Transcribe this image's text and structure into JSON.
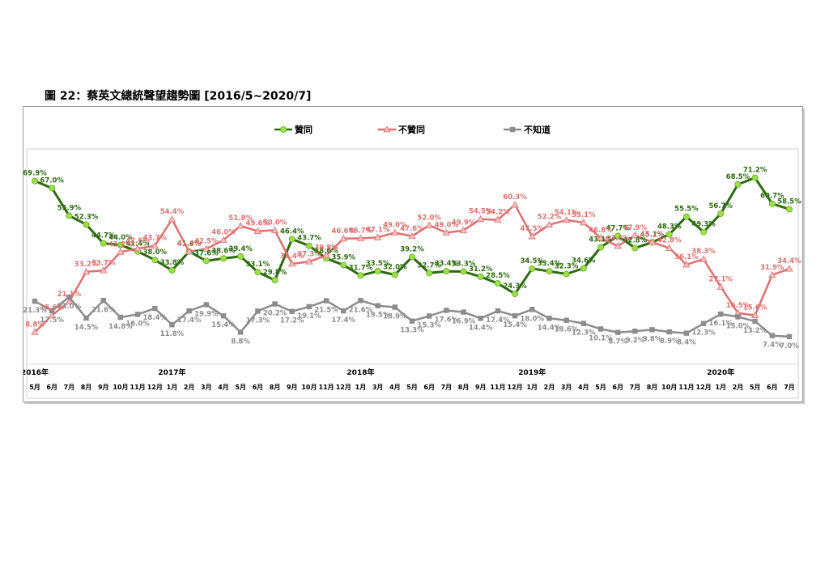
{
  "page": {
    "figure_title": "圖 22：蔡英文總統聲望趨勢圖  [2016/5~2020/7]"
  },
  "chart_data": {
    "type": "line",
    "grid": false,
    "legend_position": "top-center",
    "x_month_labels": [
      "5月",
      "6月",
      "7月",
      "8月",
      "9月",
      "10月",
      "11月",
      "12月",
      "1月",
      "2月",
      "3月",
      "4月",
      "5月",
      "6月",
      "8月",
      "9月",
      "10月",
      "11月",
      "12月",
      "1月",
      "3月",
      "4月",
      "5月",
      "6月",
      "7月",
      "8月",
      "9月",
      "11月",
      "12月",
      "1月",
      "2月",
      "3月",
      "4月",
      "5月",
      "6月",
      "7月",
      "8月",
      "10月",
      "11月",
      "12月",
      "1月",
      "2月",
      "5月",
      "6月",
      "7月"
    ],
    "year_labels": [
      {
        "label": "2016年",
        "index": 0
      },
      {
        "label": "2017年",
        "index": 8
      },
      {
        "label": "2018年",
        "index": 19
      },
      {
        "label": "2019年",
        "index": 29
      },
      {
        "label": "2020年",
        "index": 40
      }
    ],
    "series": [
      {
        "name": "贊同",
        "color": "#2d6b10",
        "marker": "circle",
        "marker_color": "#9be045",
        "values": [
          69.9,
          67.0,
          55.9,
          52.3,
          44.7,
          44.0,
          41.4,
          38.0,
          33.8,
          41.4,
          37.6,
          38.6,
          39.4,
          33.1,
          29.8,
          46.4,
          43.7,
          38.6,
          35.9,
          31.7,
          33.5,
          32.0,
          39.2,
          32.7,
          33.4,
          33.3,
          31.2,
          28.5,
          24.3,
          34.5,
          33.4,
          32.3,
          34.6,
          43.1,
          47.7,
          42.8,
          45.1,
          48.3,
          55.5,
          49.3,
          56.7,
          68.5,
          71.2,
          60.7,
          58.5
        ],
        "labels": [
          "69.9%",
          "67.0%",
          "55.9%",
          "52.3%",
          "44.7%",
          "44.0%",
          "41.4%",
          "38.0%",
          "33.8%",
          "41.4%",
          "37.6%",
          "38.6%",
          "39.4%",
          "33.1%",
          "29.8%",
          "46.4%",
          "43.7%",
          "38.6%",
          "35.9%",
          "31.7%",
          "33.5%",
          "32.0%",
          "39.2%",
          "32.7%",
          "33.4%",
          "33.3%",
          "31.2%",
          "28.5%",
          "24.3%",
          "34.5%",
          "33.4%",
          "32.3%",
          "34.6%",
          "43.1%",
          "47.7%",
          "42.8%",
          "45.1%",
          "48.3%",
          "55.5%",
          "49.3%",
          "56.7%",
          "68.5%",
          "71.2%",
          "60.7%",
          "58.5%"
        ]
      },
      {
        "name": "不贊同",
        "color": "#e07070",
        "marker": "triangle",
        "marker_color": "#f4c0c0",
        "values": [
          8.8,
          15.6,
          21.1,
          33.2,
          33.7,
          41.2,
          42.6,
          43.7,
          54.4,
          41.3,
          42.5,
          46.0,
          51.8,
          49.6,
          50.0,
          36.4,
          37.3,
          39.8,
          46.6,
          46.7,
          47.1,
          49.0,
          47.6,
          52.0,
          49.0,
          49.9,
          54.5,
          54.2,
          60.3,
          47.5,
          52.2,
          54.1,
          53.1,
          46.8,
          43.6,
          47.9,
          45.2,
          42.8,
          36.1,
          38.3,
          27.1,
          16.5,
          15.6,
          31.9,
          34.4
        ],
        "labels": [
          "8.8%",
          "15.6%",
          "21.1%",
          "33.2%",
          "33.7%",
          "41.2%",
          "42.6%",
          "43.7%",
          "54.4%",
          "41.3%",
          "42.5%",
          "46.0%",
          "51.8%",
          "49.6%",
          "50.0%",
          "36.4%",
          "37.3%",
          "39.8%",
          "46.6%",
          "46.7%",
          "47.1%",
          "49.0%",
          "47.6%",
          "52.0%",
          "49.0%",
          "49.9%",
          "54.5%",
          "54.2%",
          "60.3%",
          "47.5%",
          "52.2%",
          "54.1%",
          "53.1%",
          "46.8%",
          "43.6%",
          "47.9%",
          "45.2%",
          "42.8%",
          "36.1%",
          "38.3%",
          "27.1%",
          "16.5%",
          "15.6%",
          "31.9%",
          "34.4%"
        ]
      },
      {
        "name": "不知道",
        "color": "#8c8c8c",
        "marker": "square",
        "marker_color": "#8c8c8c",
        "values": [
          21.3,
          17.5,
          23.0,
          14.5,
          21.6,
          14.8,
          16.0,
          18.4,
          11.8,
          17.4,
          19.9,
          15.4,
          8.8,
          17.3,
          20.2,
          17.2,
          19.1,
          21.5,
          17.4,
          21.6,
          19.5,
          18.9,
          13.3,
          15.3,
          17.6,
          16.9,
          14.4,
          17.4,
          15.4,
          18.0,
          14.4,
          13.6,
          12.3,
          10.1,
          8.7,
          9.2,
          9.8,
          8.9,
          8.4,
          12.3,
          16.1,
          15.0,
          13.2,
          7.4,
          7.0
        ],
        "labels": [
          "21.3%",
          "17.5%",
          "23.0%",
          "14.5%",
          "21.6%",
          "14.8%",
          "16.0%",
          "18.4%",
          "11.8%",
          "17.4%",
          "19.9%",
          "15.4%",
          "8.8%",
          "17.3%",
          "20.2%",
          "17.2%",
          "19.1%",
          "21.5%",
          "17.4%",
          "21.6%",
          "19.5%",
          "18.9%",
          "13.3%",
          "15.3%",
          "17.6%",
          "16.9%",
          "14.4%",
          "17.4%",
          "15.4%",
          "18.0%",
          "14.4%",
          "13.6%",
          "12.3%",
          "10.1%",
          "8.7%",
          "9.2%",
          "9.8%",
          "8.9%",
          "8.4%",
          "12.3%",
          "16.1%",
          "15.0%",
          "13.2%",
          "7.4%",
          "7.0%"
        ]
      }
    ]
  }
}
